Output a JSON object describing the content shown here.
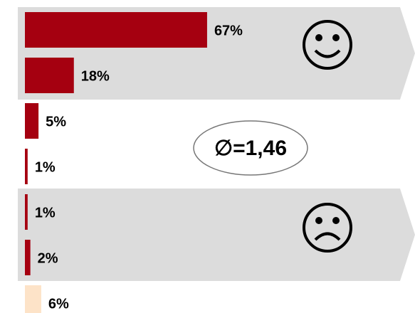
{
  "chart_data": {
    "type": "bar",
    "values": [
      67,
      18,
      5,
      1,
      1,
      2,
      6
    ],
    "value_labels": [
      "67%",
      "18%",
      "5%",
      "1%",
      "1%",
      "2%",
      "6%"
    ],
    "colors": [
      "#a50010",
      "#a50010",
      "#a50010",
      "#a50010",
      "#a50010",
      "#a50010",
      "#fde3c8"
    ],
    "annotation": "∅=1,46"
  }
}
